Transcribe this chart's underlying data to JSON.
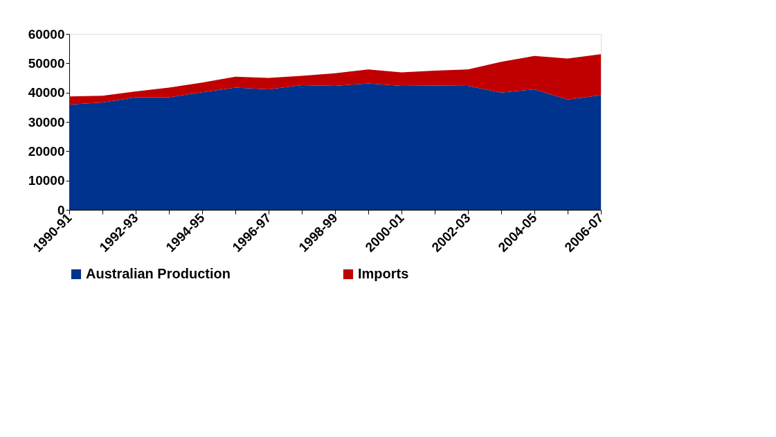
{
  "chart_data": {
    "type": "area",
    "stacked": true,
    "categories": [
      "1990-91",
      null,
      "1992-93",
      null,
      "1994-95",
      null,
      "1996-97",
      null,
      "1998-99",
      null,
      "2000-01",
      null,
      "2002-03",
      null,
      "2004-05",
      null,
      "2006-07"
    ],
    "series": [
      {
        "name": "Australian Production",
        "color": "#00338d",
        "values": [
          35900,
          36600,
          38400,
          38400,
          40100,
          41700,
          41100,
          42500,
          42300,
          43100,
          42300,
          42400,
          42300,
          40000,
          41100,
          37600,
          39100
        ]
      },
      {
        "name": "Imports",
        "color": "#c00000",
        "values": [
          2800,
          2300,
          2000,
          3300,
          3300,
          3700,
          3900,
          3200,
          4300,
          4800,
          4600,
          5100,
          5600,
          10500,
          11400,
          14000,
          14000
        ]
      }
    ],
    "ylim": [
      0,
      60000
    ],
    "yticks": [
      0,
      10000,
      20000,
      30000,
      40000,
      50000,
      60000
    ],
    "grid": false,
    "legend": "bottom"
  }
}
